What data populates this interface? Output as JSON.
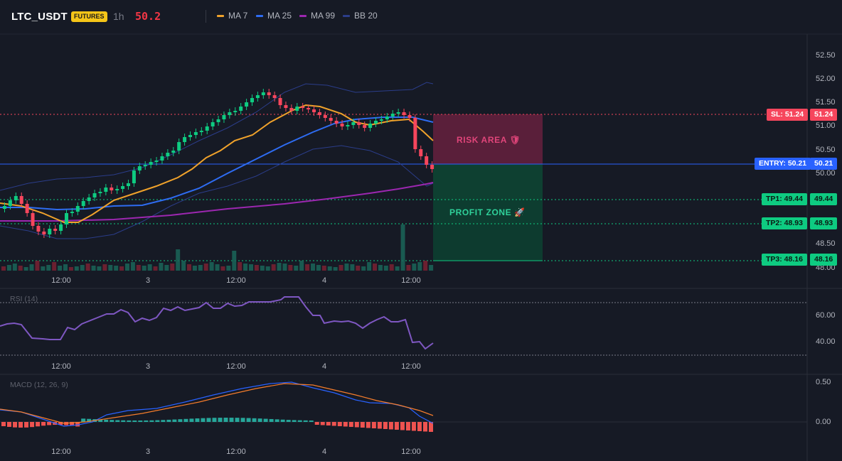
{
  "header": {
    "symbol": "LTC_USDT",
    "badge": "FUTURES",
    "timeframe": "1h",
    "last_price": "50.2",
    "indicators": [
      {
        "label": "MA 7",
        "color": "#f0a22b"
      },
      {
        "label": "MA 25",
        "color": "#2e6cf2"
      },
      {
        "label": "MA 99",
        "color": "#9c27b0"
      },
      {
        "label": "BB 20",
        "color": "#2b3d8a"
      }
    ]
  },
  "price_axis": [
    "52.50",
    "52.00",
    "51.50",
    "51.00",
    "50.50",
    "50.00",
    "48.50",
    "48.00"
  ],
  "time_axis": [
    "12:00",
    "3",
    "12:00",
    "4",
    "12:00"
  ],
  "trade": {
    "sl_label": "SL: 51.24",
    "sl_value": "51.24",
    "entry_label": "ENTRY: 50.21",
    "entry_value": "50.21",
    "tp1_label": "TP1: 49.44",
    "tp1_value": "49.44",
    "tp2_label": "TP2: 48.93",
    "tp2_value": "48.93",
    "tp3_label": "TP3: 48.16",
    "tp3_value": "48.16",
    "risk_label": "RISK AREA 🛡",
    "profit_label": "PROFIT ZONE 🚀"
  },
  "rsi": {
    "label": "RSI (14)",
    "axis": [
      "60.00",
      "40.00"
    ]
  },
  "macd": {
    "label": "MACD (12, 26, 9)",
    "axis": [
      "0.50",
      "0.00"
    ]
  },
  "colors": {
    "up": "#0ecb81",
    "down": "#f6465d",
    "sl": "#f6465d",
    "entry": "#2962ff",
    "tp": "#0ecb81",
    "rsi": "#7e57c2"
  }
}
